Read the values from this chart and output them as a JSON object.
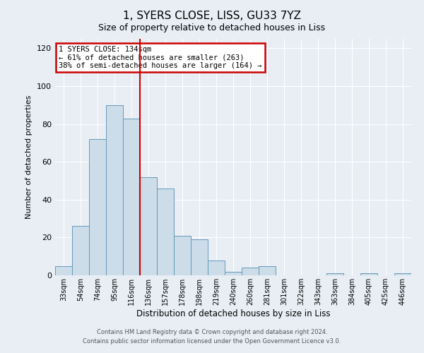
{
  "title": "1, SYERS CLOSE, LISS, GU33 7YZ",
  "subtitle": "Size of property relative to detached houses in Liss",
  "xlabel": "Distribution of detached houses by size in Liss",
  "ylabel": "Number of detached properties",
  "categories": [
    "33sqm",
    "54sqm",
    "74sqm",
    "95sqm",
    "116sqm",
    "136sqm",
    "157sqm",
    "178sqm",
    "198sqm",
    "219sqm",
    "240sqm",
    "260sqm",
    "281sqm",
    "301sqm",
    "322sqm",
    "343sqm",
    "363sqm",
    "384sqm",
    "405sqm",
    "425sqm",
    "446sqm"
  ],
  "values": [
    5,
    26,
    72,
    90,
    83,
    52,
    46,
    21,
    19,
    8,
    2,
    4,
    5,
    0,
    0,
    0,
    1,
    0,
    1,
    0,
    1
  ],
  "bar_color": "#ccdce8",
  "bar_edge_color": "#6699bb",
  "vline_x_index": 5,
  "vline_color": "#cc0000",
  "annotation_text": "1 SYERS CLOSE: 134sqm\n← 61% of detached houses are smaller (263)\n38% of semi-detached houses are larger (164) →",
  "annotation_box_color": "#cc0000",
  "ylim": [
    0,
    125
  ],
  "yticks": [
    0,
    20,
    40,
    60,
    80,
    100,
    120
  ],
  "footer1": "Contains HM Land Registry data © Crown copyright and database right 2024.",
  "footer2": "Contains public sector information licensed under the Open Government Licence v3.0.",
  "bg_color": "#e8eef4",
  "plot_bg_color": "#e8eef4",
  "title_fontsize": 11,
  "subtitle_fontsize": 9
}
